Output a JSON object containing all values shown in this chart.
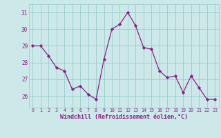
{
  "x": [
    0,
    1,
    2,
    3,
    4,
    5,
    6,
    7,
    8,
    9,
    10,
    11,
    12,
    13,
    14,
    15,
    16,
    17,
    18,
    19,
    20,
    21,
    22,
    23
  ],
  "y": [
    29,
    29,
    28.4,
    27.7,
    27.5,
    26.4,
    26.6,
    26.1,
    25.8,
    28.2,
    30.0,
    30.3,
    31.0,
    30.2,
    28.9,
    28.8,
    27.5,
    27.1,
    27.2,
    26.2,
    27.2,
    26.5,
    25.8,
    25.8
  ],
  "line_color": "#882288",
  "marker": "D",
  "marker_size": 2.2,
  "bg_color": "#cce8e8",
  "grid_color": "#99cccc",
  "xlabel": "Windchill (Refroidissement éolien,°C)",
  "xlabel_color": "#882288",
  "tick_color": "#882288",
  "ylim_min": 25.3,
  "ylim_max": 31.5,
  "yticks": [
    26,
    27,
    28,
    29,
    30,
    31
  ],
  "xticks": [
    0,
    1,
    2,
    3,
    4,
    5,
    6,
    7,
    8,
    9,
    10,
    11,
    12,
    13,
    14,
    15,
    16,
    17,
    18,
    19,
    20,
    21,
    22,
    23
  ],
  "xfontsize": 4.8,
  "yfontsize": 5.5,
  "xlabel_fontsize": 6.0
}
